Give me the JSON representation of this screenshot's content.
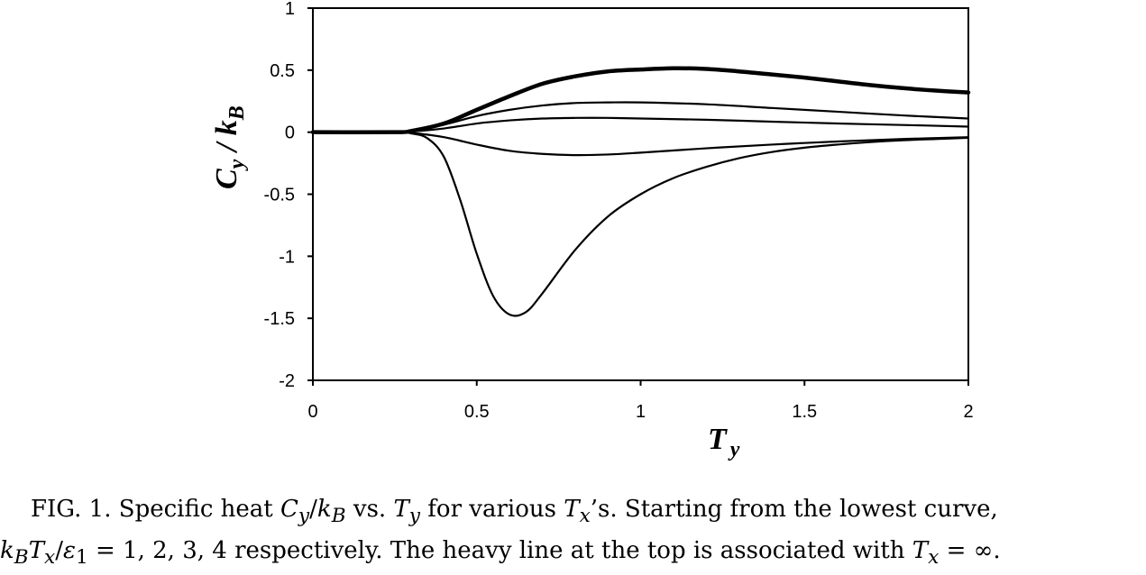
{
  "chart_data": {
    "type": "line",
    "xlabel": {
      "main": "T",
      "sub": "y"
    },
    "ylabel": {
      "main": "C",
      "sub1": "y",
      "sep": " / ",
      "main2": "k",
      "sub2": "B"
    },
    "xlim": [
      0,
      2
    ],
    "ylim": [
      -2,
      1
    ],
    "xticks": [
      0,
      0.5,
      1,
      1.5,
      2
    ],
    "xtick_labels": [
      "0",
      "0.5",
      "1",
      "1.5",
      "2"
    ],
    "yticks": [
      1,
      0.5,
      0,
      -0.5,
      -1,
      -1.5,
      -2
    ],
    "ytick_labels": [
      "1",
      "0.5",
      "0",
      "-0.5",
      "-1",
      "-1.5",
      "-2"
    ],
    "grid": false,
    "legend": "none",
    "line_color": "#000000",
    "series": [
      {
        "heavy": false,
        "points": [
          [
            0,
            0
          ],
          [
            0.25,
            0
          ],
          [
            0.3,
            -0.01
          ],
          [
            0.35,
            -0.05
          ],
          [
            0.4,
            -0.2
          ],
          [
            0.45,
            -0.55
          ],
          [
            0.5,
            -0.98
          ],
          [
            0.55,
            -1.32
          ],
          [
            0.6,
            -1.47
          ],
          [
            0.65,
            -1.45
          ],
          [
            0.7,
            -1.3
          ],
          [
            0.8,
            -0.95
          ],
          [
            0.9,
            -0.68
          ],
          [
            1.0,
            -0.5
          ],
          [
            1.1,
            -0.37
          ],
          [
            1.2,
            -0.28
          ],
          [
            1.3,
            -0.21
          ],
          [
            1.4,
            -0.16
          ],
          [
            1.5,
            -0.125
          ],
          [
            1.6,
            -0.1
          ],
          [
            1.7,
            -0.08
          ],
          [
            1.8,
            -0.065
          ],
          [
            1.9,
            -0.055
          ],
          [
            2.0,
            -0.045
          ]
        ]
      },
      {
        "heavy": false,
        "points": [
          [
            0,
            0
          ],
          [
            0.25,
            0
          ],
          [
            0.3,
            -0.005
          ],
          [
            0.4,
            -0.04
          ],
          [
            0.5,
            -0.1
          ],
          [
            0.6,
            -0.15
          ],
          [
            0.7,
            -0.175
          ],
          [
            0.8,
            -0.185
          ],
          [
            0.9,
            -0.18
          ],
          [
            1.0,
            -0.165
          ],
          [
            1.2,
            -0.13
          ],
          [
            1.4,
            -0.1
          ],
          [
            1.6,
            -0.075
          ],
          [
            1.8,
            -0.055
          ],
          [
            2.0,
            -0.04
          ]
        ]
      },
      {
        "heavy": false,
        "points": [
          [
            0,
            0
          ],
          [
            0.25,
            0
          ],
          [
            0.3,
            0.005
          ],
          [
            0.4,
            0.03
          ],
          [
            0.5,
            0.07
          ],
          [
            0.6,
            0.095
          ],
          [
            0.7,
            0.11
          ],
          [
            0.8,
            0.115
          ],
          [
            0.9,
            0.115
          ],
          [
            1.0,
            0.11
          ],
          [
            1.2,
            0.1
          ],
          [
            1.4,
            0.085
          ],
          [
            1.6,
            0.07
          ],
          [
            1.8,
            0.058
          ],
          [
            2.0,
            0.045
          ]
        ]
      },
      {
        "heavy": false,
        "points": [
          [
            0,
            0
          ],
          [
            0.25,
            0
          ],
          [
            0.3,
            0.01
          ],
          [
            0.4,
            0.06
          ],
          [
            0.5,
            0.13
          ],
          [
            0.6,
            0.18
          ],
          [
            0.7,
            0.215
          ],
          [
            0.8,
            0.235
          ],
          [
            0.9,
            0.24
          ],
          [
            1.0,
            0.24
          ],
          [
            1.2,
            0.225
          ],
          [
            1.4,
            0.195
          ],
          [
            1.6,
            0.165
          ],
          [
            1.8,
            0.135
          ],
          [
            2.0,
            0.11
          ]
        ]
      },
      {
        "heavy": true,
        "points": [
          [
            0,
            0
          ],
          [
            0.25,
            0
          ],
          [
            0.3,
            0.01
          ],
          [
            0.4,
            0.07
          ],
          [
            0.5,
            0.18
          ],
          [
            0.6,
            0.29
          ],
          [
            0.7,
            0.39
          ],
          [
            0.8,
            0.45
          ],
          [
            0.9,
            0.49
          ],
          [
            1.0,
            0.505
          ],
          [
            1.1,
            0.515
          ],
          [
            1.2,
            0.51
          ],
          [
            1.3,
            0.49
          ],
          [
            1.4,
            0.465
          ],
          [
            1.5,
            0.44
          ],
          [
            1.6,
            0.41
          ],
          [
            1.7,
            0.38
          ],
          [
            1.8,
            0.355
          ],
          [
            1.9,
            0.335
          ],
          [
            2.0,
            0.32
          ]
        ]
      }
    ]
  },
  "caption": {
    "line1": "FIG. 1. Specific heat C_y/k_B vs. T_y for various T_x’s. Starting from the lowest curve,",
    "line2": "k_B T_x/ε_1 = 1, 2, 3, 4 respectively. The heavy line at the top is associated with T_x = ∞.",
    "p1": "FIG. 1. Specific heat ",
    "c": "C",
    "sub_y": "y",
    "slash": "/",
    "k": "k",
    "sub_b": "B",
    "p2": " vs. ",
    "t": "T",
    "p3": " for various ",
    "sub_x": "x",
    "p4": "’s. Starting from the lowest curve,",
    "eps": "ε",
    "sub_1": "1",
    "p5": " = 1, 2, 3, 4 respectively. The heavy line at the top is associated with ",
    "p6": " = ∞."
  }
}
